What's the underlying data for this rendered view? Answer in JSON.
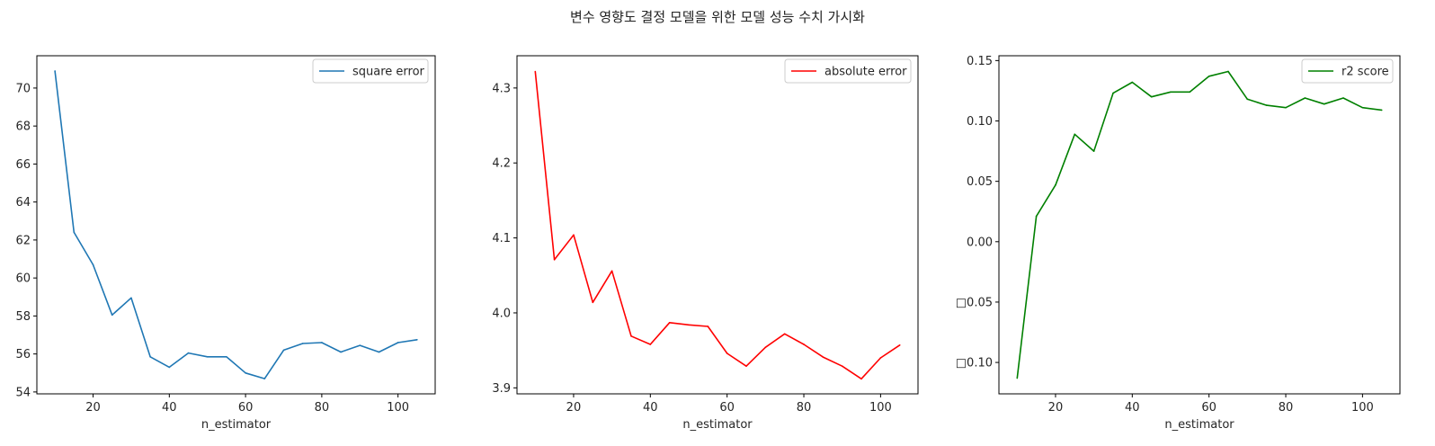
{
  "figure": {
    "suptitle": "변수 영향도 결정 모델을 위한 모델 성능 수치 가시화"
  },
  "chart_data": [
    {
      "type": "line",
      "x": [
        10,
        15,
        20,
        25,
        30,
        35,
        40,
        45,
        50,
        55,
        60,
        65,
        70,
        75,
        80,
        85,
        90,
        95,
        100,
        105
      ],
      "series": [
        {
          "name": "square error",
          "color": "#1f77b4",
          "values": [
            70.9,
            62.4,
            60.7,
            58.05,
            58.95,
            55.85,
            55.3,
            56.05,
            55.85,
            55.85,
            55.0,
            54.7,
            56.2,
            56.55,
            56.6,
            56.1,
            56.45,
            56.1,
            56.6,
            56.75
          ]
        }
      ],
      "xlabel": "n_estimator",
      "ylabel": "",
      "xlim": [
        5.25,
        109.75
      ],
      "ylim": [
        53.9,
        71.7
      ],
      "xticks": [
        20,
        40,
        60,
        80,
        100
      ],
      "yticks": [
        54,
        56,
        58,
        60,
        62,
        64,
        66,
        68,
        70
      ],
      "ytick_labels": [
        "54",
        "56",
        "58",
        "60",
        "62",
        "64",
        "66",
        "68",
        "70"
      ],
      "legend": "top-right",
      "grid": false
    },
    {
      "type": "line",
      "x": [
        10,
        15,
        20,
        25,
        30,
        35,
        40,
        45,
        50,
        55,
        60,
        65,
        70,
        75,
        80,
        85,
        90,
        95,
        100,
        105
      ],
      "series": [
        {
          "name": "absolute error",
          "color": "#ff0000",
          "values": [
            4.322,
            4.071,
            4.104,
            4.014,
            4.056,
            3.969,
            3.958,
            3.987,
            3.984,
            3.982,
            3.946,
            3.929,
            3.954,
            3.972,
            3.958,
            3.941,
            3.929,
            3.912,
            3.94,
            3.957
          ]
        }
      ],
      "xlabel": "n_estimator",
      "ylabel": "",
      "xlim": [
        5.25,
        109.75
      ],
      "ylim": [
        3.892,
        4.343
      ],
      "xticks": [
        20,
        40,
        60,
        80,
        100
      ],
      "yticks": [
        3.9,
        4.0,
        4.1,
        4.2,
        4.3
      ],
      "ytick_labels": [
        "3.9",
        "4.0",
        "4.1",
        "4.2",
        "4.3"
      ],
      "legend": "top-right",
      "grid": false
    },
    {
      "type": "line",
      "x": [
        10,
        15,
        20,
        25,
        30,
        35,
        40,
        45,
        50,
        55,
        60,
        65,
        70,
        75,
        80,
        85,
        90,
        95,
        100,
        105
      ],
      "series": [
        {
          "name": "r2 score",
          "color": "#008000",
          "values": [
            -0.113,
            0.021,
            0.047,
            0.089,
            0.075,
            0.123,
            0.132,
            0.12,
            0.124,
            0.124,
            0.137,
            0.141,
            0.118,
            0.113,
            0.111,
            0.119,
            0.114,
            0.119,
            0.111,
            0.109
          ]
        }
      ],
      "xlabel": "n_estimator",
      "ylabel": "",
      "xlim": [
        5.25,
        109.75
      ],
      "ylim": [
        -0.126,
        0.154
      ],
      "xticks": [
        20,
        40,
        60,
        80,
        100
      ],
      "yticks": [
        -0.1,
        -0.05,
        0.0,
        0.05,
        0.1,
        0.15
      ],
      "ytick_labels": [
        "□0.10",
        "□0.05",
        "0.00",
        "0.05",
        "0.10",
        "0.15"
      ],
      "legend": "top-right",
      "grid": false
    }
  ]
}
